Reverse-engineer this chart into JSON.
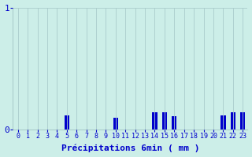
{
  "title": "",
  "xlabel": "Précipitations 6min ( mm )",
  "ylabel": "",
  "background_color": "#cceee8",
  "bar_color": "#0000cc",
  "grid_color": "#aacccc",
  "text_color": "#0000cc",
  "num_bars": 24,
  "values": [
    0,
    0,
    0,
    0,
    0,
    0.12,
    0,
    0,
    0,
    0,
    0.1,
    0,
    0,
    0,
    0.14,
    0.14,
    0.11,
    0,
    0,
    0,
    0,
    0.12,
    0.14,
    0.14
  ],
  "ylim": [
    0,
    1.0
  ],
  "yticks": [
    0,
    1
  ],
  "xlim": [
    -0.5,
    23.5
  ],
  "xtick_labels": [
    "0",
    "1",
    "2",
    "3",
    "4",
    "5",
    "6",
    "7",
    "8",
    "9",
    "10",
    "11",
    "12",
    "13",
    "14",
    "15",
    "16",
    "17",
    "18",
    "19",
    "20",
    "21",
    "22",
    "23"
  ],
  "xlabel_fontsize": 8,
  "ytick_fontsize": 8,
  "xtick_fontsize": 6
}
